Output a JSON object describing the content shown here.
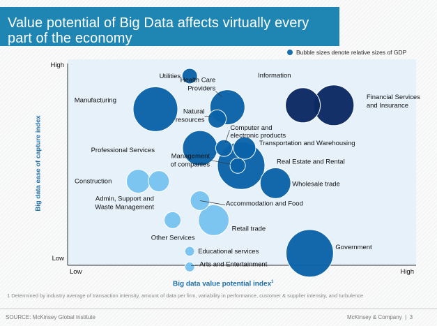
{
  "title": "Value potential of Big Data affects virtually every part of the economy",
  "legend_note": "Bubble sizes denote relative sizes of GDP",
  "footnote": "1 Determined by industry average of transaction intensity, amount of data per firm, variability in performance, customer & supplier intensity, and turbulence",
  "source": "SOURCE: McKinsey Global Institute",
  "brand": "McKinsey & Company",
  "page_number": "3",
  "colors": {
    "navy": "#0b2a63",
    "blue": "#0a63a8",
    "light": "#79c3f1",
    "plot_bg": "#e6f1fa",
    "accent": "#1f86b4"
  },
  "chart_data": {
    "type": "scatter",
    "title": "Value potential of Big Data affects virtually every part of the economy",
    "xlabel": "Big data value potential index",
    "xlabel_sup": "1",
    "ylabel": "Big data ease of capture index",
    "x_ticks": [
      "Low",
      "High"
    ],
    "y_ticks": [
      "Low",
      "High"
    ],
    "xlim": [
      0,
      100
    ],
    "ylim": [
      0,
      100
    ],
    "grid": false,
    "legend": "Bubble sizes denote relative sizes of GDP",
    "points": [
      {
        "label": "Utilities",
        "x": 35,
        "y": 95,
        "size": 11,
        "color": "blue"
      },
      {
        "label": "Manufacturing",
        "x": 25,
        "y": 78,
        "size": 32,
        "color": "blue"
      },
      {
        "label": "Health Care Providers",
        "x": 46,
        "y": 79,
        "size": 25,
        "color": "blue"
      },
      {
        "label": "Natural resources",
        "x": 43,
        "y": 73,
        "size": 13,
        "color": "blue"
      },
      {
        "label": "Information",
        "x": 68,
        "y": 80,
        "size": 25,
        "color": "navy"
      },
      {
        "label": "Financial Services and Insurance",
        "x": 77,
        "y": 80,
        "size": 29,
        "color": "navy"
      },
      {
        "label": "Professional Services",
        "x": 38,
        "y": 58,
        "size": 25,
        "color": "blue"
      },
      {
        "label": "Computer and electronic products",
        "x": 45,
        "y": 58,
        "size": 12,
        "color": "blue"
      },
      {
        "label": "Transportation and Warehousing",
        "x": 51,
        "y": 58,
        "size": 16,
        "color": "blue"
      },
      {
        "label": "Real Estate and Rental",
        "x": 50,
        "y": 49,
        "size": 34,
        "color": "blue"
      },
      {
        "label": "Management of companies",
        "x": 49,
        "y": 49,
        "size": 11,
        "color": "blue"
      },
      {
        "label": "Wholesale trade",
        "x": 60,
        "y": 40,
        "size": 22,
        "color": "blue"
      },
      {
        "label": "Construction",
        "x": 20,
        "y": 41,
        "size": 17,
        "color": "light"
      },
      {
        "label": "Admin, Support and Waste Management",
        "x": 26,
        "y": 41,
        "size": 15,
        "color": "light"
      },
      {
        "label": "Accommodation and Food",
        "x": 38,
        "y": 31,
        "size": 14,
        "color": "light"
      },
      {
        "label": "Retail trade",
        "x": 42,
        "y": 21,
        "size": 22,
        "color": "light"
      },
      {
        "label": "Other Services",
        "x": 30,
        "y": 21,
        "size": 12,
        "color": "light"
      },
      {
        "label": "Educational services",
        "x": 35,
        "y": 5,
        "size": 7,
        "color": "light"
      },
      {
        "label": "Arts and Entertainment",
        "x": 35,
        "y": -3,
        "size": 7,
        "color": "light"
      },
      {
        "label": "Government",
        "x": 70,
        "y": 4,
        "size": 34,
        "color": "blue"
      }
    ]
  }
}
